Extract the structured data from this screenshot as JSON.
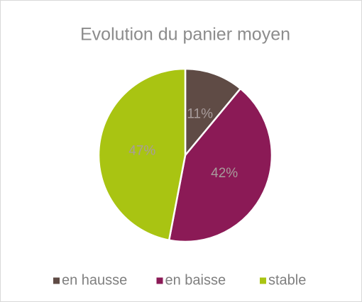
{
  "chart_data": {
    "type": "pie",
    "title": "Evolution du panier moyen",
    "categories": [
      "en hausse",
      "en baisse",
      "stable"
    ],
    "values": [
      11,
      42,
      47
    ],
    "value_labels": [
      "11%",
      "42%",
      "47%"
    ],
    "colors": [
      "#5f4b45",
      "#8b1a56",
      "#a9c412"
    ],
    "legend": "bottom"
  }
}
